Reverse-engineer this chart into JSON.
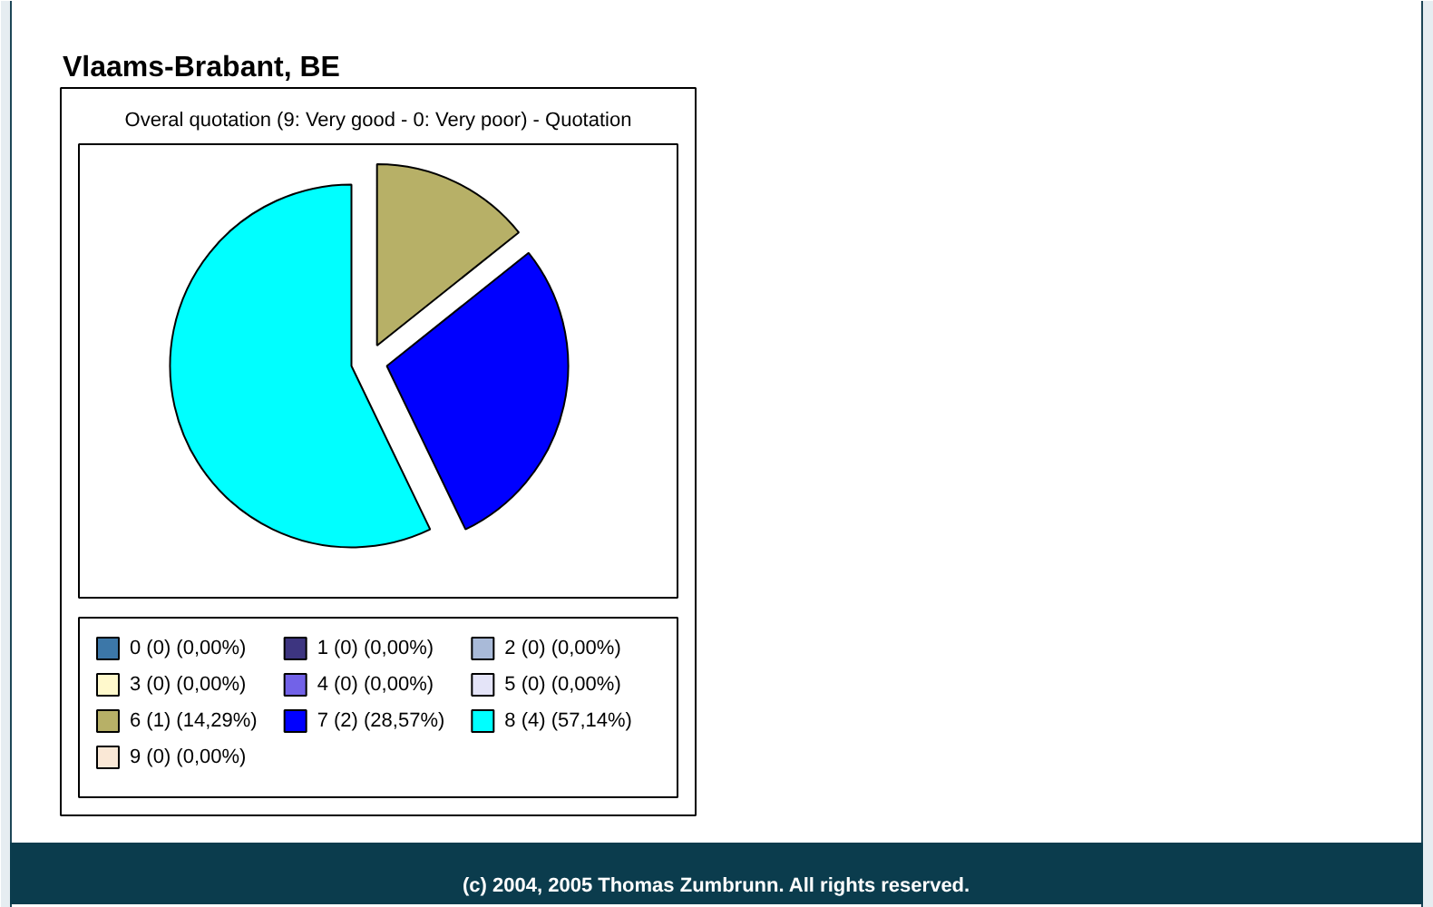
{
  "chart_data": {
    "type": "pie",
    "title": "Vlaams-Brabant, BE",
    "subtitle": "Overal quotation (9: Very good - 0: Very poor) - Quotation",
    "categories": [
      "0",
      "1",
      "2",
      "3",
      "4",
      "5",
      "6",
      "7",
      "8",
      "9"
    ],
    "values": [
      0,
      0,
      0,
      0,
      0,
      0,
      1,
      2,
      4,
      0
    ],
    "value_labels": [
      "(0) (0,00%)",
      "(0) (0,00%)",
      "(0) (0,00%)",
      "(0) (0,00%)",
      "(0) (0,00%)",
      "(0) (0,00%)",
      "(1) (14,29%)",
      "(2) (28,57%)",
      "(4) (57,14%)",
      "(0) (0,00%)"
    ],
    "colors": [
      "#3c77a8",
      "#3d3580",
      "#a9bad8",
      "#fff9cc",
      "#7262e8",
      "#e4e4f8",
      "#b7b067",
      "#0000ff",
      "#00ffff",
      "#fae8d6"
    ],
    "legend": "bottom",
    "annotations": [
      "(c) 2004, 2005 Thomas Zumbrunn. All rights reserved."
    ]
  }
}
